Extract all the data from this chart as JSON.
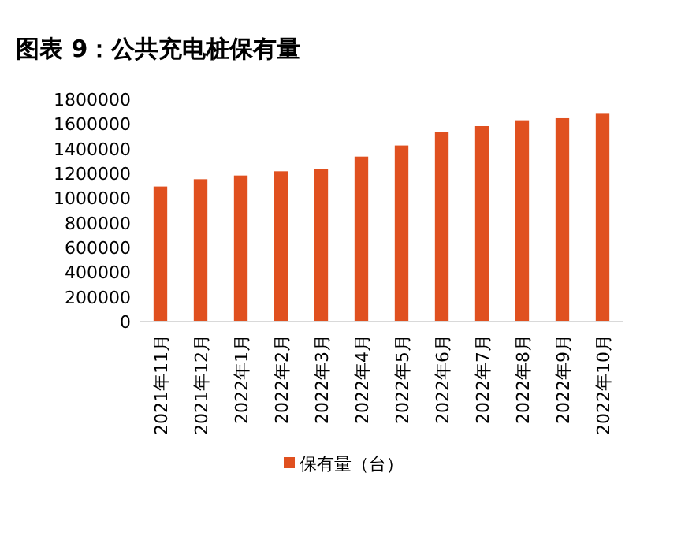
{
  "chart_data": {
    "type": "bar",
    "title": "图表 9：公共充电桩保有量",
    "categories": [
      "2021年11月",
      "2021年12月",
      "2022年1月",
      "2022年2月",
      "2022年3月",
      "2022年4月",
      "2022年5月",
      "2022年6月",
      "2022年7月",
      "2022年8月",
      "2022年9月",
      "2022年10月"
    ],
    "series": [
      {
        "name": "保有量（台）",
        "color": "#e0501f",
        "values": [
          1094000,
          1153000,
          1183000,
          1217000,
          1238000,
          1336000,
          1426000,
          1536000,
          1583000,
          1630000,
          1647000,
          1689000
        ]
      }
    ],
    "ylim": [
      0,
      1800000
    ],
    "yticks": [
      0,
      200000,
      400000,
      600000,
      800000,
      1000000,
      1200000,
      1400000,
      1600000,
      1800000
    ],
    "grid": false,
    "legend": "bottom"
  }
}
